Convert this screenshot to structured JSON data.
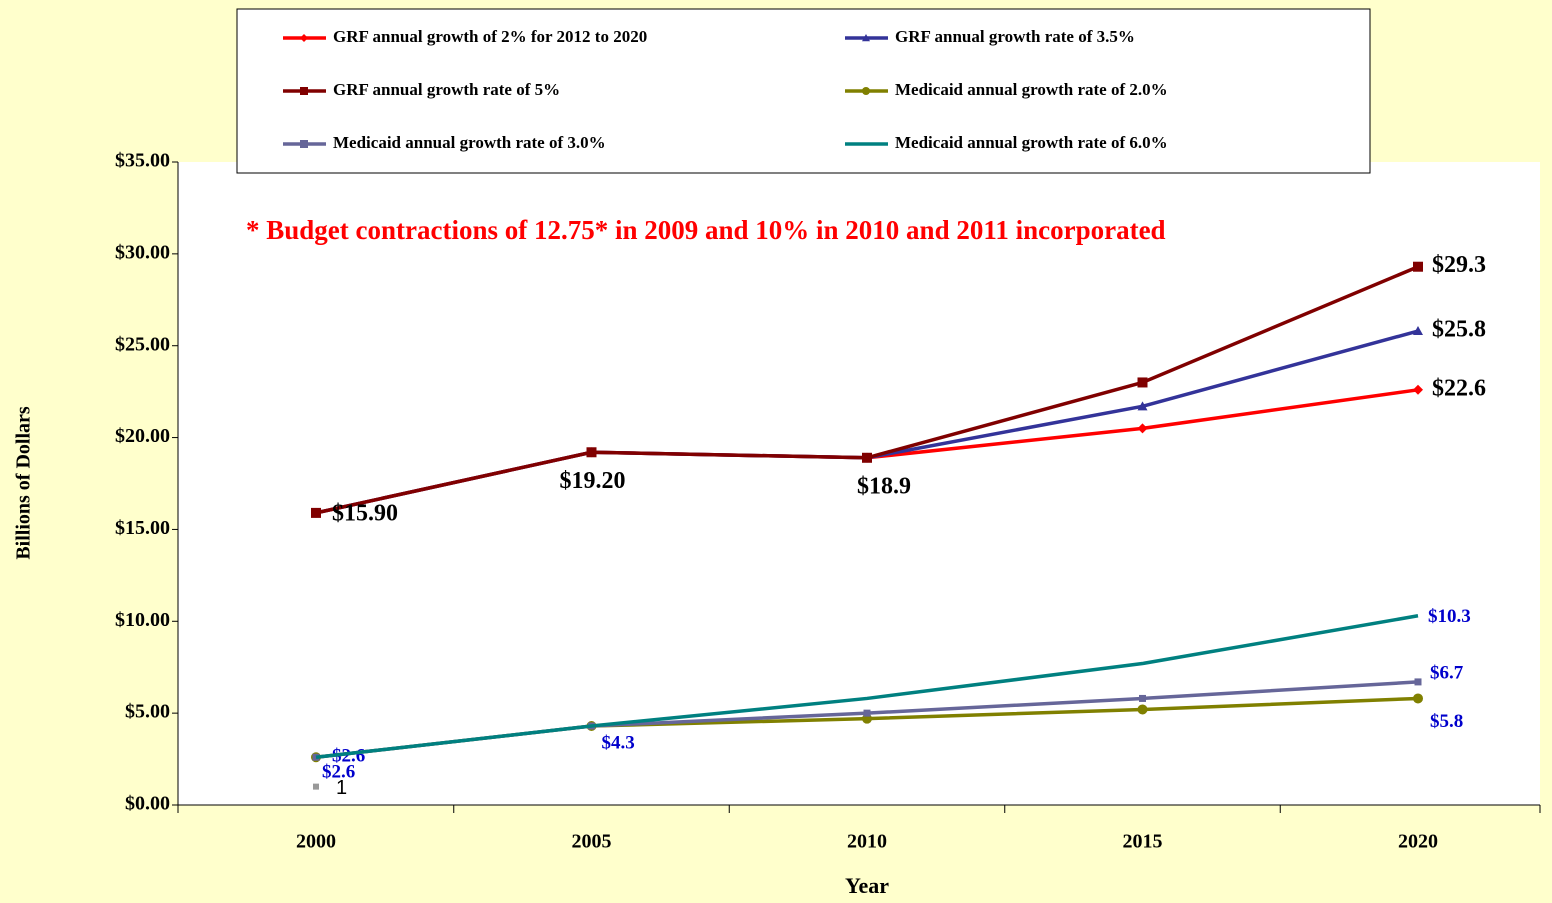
{
  "chart_data": {
    "type": "line",
    "annotation": "* Budget contractions of 12.75* in 2009 and 10% in 2010 and 2011 incorporated",
    "x_label": "Year",
    "y_label": "Billions of Dollars",
    "categories": [
      "2000",
      "2005",
      "2010",
      "2015",
      "2020"
    ],
    "ylim": [
      0,
      35
    ],
    "yticks": [
      {
        "value": 0,
        "label": "$0.00"
      },
      {
        "value": 5,
        "label": "$5.00"
      },
      {
        "value": 10,
        "label": "$10.00"
      },
      {
        "value": 15,
        "label": "$15.00"
      },
      {
        "value": 20,
        "label": "$20.00"
      },
      {
        "value": 25,
        "label": "$25.00"
      },
      {
        "value": 30,
        "label": "$30.00"
      },
      {
        "value": 35,
        "label": "$35.00"
      }
    ],
    "grid": false,
    "legend": "top",
    "series": [
      {
        "name": "GRF annual growth of 2% for 2012 to 2020",
        "color": "#ff0000",
        "marker": "diamond",
        "values": [
          15.9,
          19.2,
          18.9,
          20.5,
          22.6
        ],
        "value_labels": [
          null,
          null,
          null,
          null,
          "$22.6"
        ],
        "label_color": "#000000"
      },
      {
        "name": "GRF annual growth rate of 3.5%",
        "color": "#333399",
        "marker": "triangle",
        "values": [
          15.9,
          19.2,
          18.9,
          21.7,
          25.8
        ],
        "value_labels": [
          null,
          null,
          null,
          null,
          "$25.8"
        ],
        "label_color": "#000000"
      },
      {
        "name": "GRF annual growth rate of 5%",
        "color": "#800000",
        "marker": "square",
        "values": [
          15.9,
          19.2,
          18.9,
          23.0,
          29.3
        ],
        "value_labels": [
          "$15.90",
          "$19.20",
          "$18.9",
          null,
          "$29.3"
        ],
        "label_color": "#000000"
      },
      {
        "name": "Medicaid annual growth rate of 2.0%",
        "color": "#808000",
        "marker": "circle",
        "values": [
          2.6,
          4.3,
          4.7,
          5.2,
          5.8
        ],
        "value_labels": [
          "$2.6",
          null,
          null,
          null,
          "$5.8"
        ],
        "label_color": "#0000cc"
      },
      {
        "name": "Medicaid annual growth rate of  3.0%",
        "color": "#666699",
        "marker": "square",
        "values": [
          2.6,
          4.3,
          5.0,
          5.8,
          6.7
        ],
        "value_labels": [
          "$2.6",
          null,
          null,
          null,
          "$6.7"
        ],
        "label_color": "#0000cc"
      },
      {
        "name": "Medicaid annual growth rate of  6.0%",
        "color": "#008080",
        "marker": "none",
        "values": [
          2.6,
          4.3,
          5.8,
          7.7,
          10.3
        ],
        "value_labels": [
          null,
          "$4.3",
          null,
          null,
          "$10.3"
        ],
        "label_color": "#0000cc"
      },
      {
        "color": "#999999",
        "marker": "square",
        "values": [
          1,
          null,
          null,
          null,
          null
        ],
        "label_color": "#000000"
      }
    ]
  }
}
